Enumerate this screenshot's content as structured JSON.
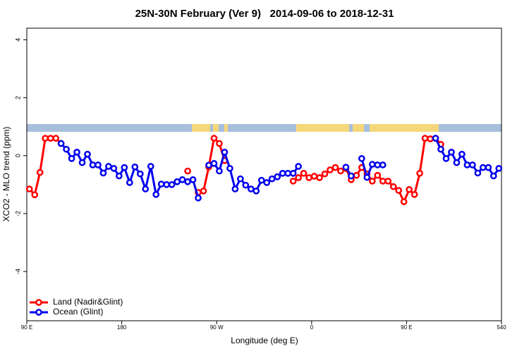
{
  "chart_data": {
    "type": "line",
    "title": "25N-30N February (Ver 9)   2014-09-06 to 2018-12-31",
    "x_label": "Longitude (deg E)",
    "y_label": "XCO2 - MLO trend (ppm)",
    "x": [
      92.5,
      97.5,
      102.5,
      107.5,
      112.5,
      117.5,
      122.5,
      127.5,
      132.5,
      137.5,
      142.5,
      147.5,
      152.5,
      157.5,
      162.5,
      167.5,
      172.5,
      177.5,
      182.5,
      187.5,
      192.5,
      197.5,
      202.5,
      207.5,
      212.5,
      217.5,
      222.5,
      227.5,
      232.5,
      237.5,
      242.5,
      247.5,
      252.5,
      257.5,
      262.5,
      267.5,
      272.5,
      277.5,
      282.5,
      287.5,
      292.5,
      297.5,
      302.5,
      307.5,
      312.5,
      317.5,
      322.5,
      327.5,
      332.5,
      337.5,
      342.5,
      347.5,
      352.5,
      357.5,
      362.5,
      367.5,
      372.5,
      377.5,
      382.5,
      387.5,
      392.5,
      397.5,
      402.5,
      407.5,
      412.5,
      417.5,
      422.5,
      427.5,
      432.5,
      437.5,
      442.5,
      447.5,
      452.5,
      457.5,
      462.5,
      467.5,
      472.5,
      477.5,
      482.5,
      487.5,
      492.5,
      497.5,
      502.5,
      507.5,
      512.5,
      517.5,
      522.5,
      527.5,
      532.5,
      537.5
    ],
    "series": [
      {
        "name": "Land (Nadir&Glint)",
        "color": "#ff0000",
        "values": [
          -1.15,
          -1.35,
          -0.58,
          0.6,
          0.6,
          0.6,
          0.42,
          null,
          null,
          null,
          null,
          null,
          null,
          null,
          null,
          null,
          null,
          null,
          null,
          null,
          null,
          null,
          null,
          null,
          null,
          null,
          null,
          null,
          null,
          null,
          -0.53,
          null,
          -1.27,
          -1.22,
          -0.39,
          0.6,
          0.42,
          -0.17,
          null,
          null,
          null,
          null,
          null,
          null,
          null,
          null,
          null,
          null,
          null,
          null,
          -0.88,
          -0.76,
          -0.61,
          -0.76,
          -0.71,
          -0.76,
          -0.63,
          -0.49,
          -0.41,
          -0.53,
          -0.44,
          -0.83,
          -0.68,
          -0.41,
          -0.63,
          -0.88,
          -0.68,
          -0.88,
          -0.88,
          -1.07,
          -1.2,
          -1.59,
          -1.17,
          -1.34,
          -0.61,
          0.6,
          0.58,
          0.6,
          0.39,
          null,
          null,
          null,
          null,
          null,
          null,
          null,
          null,
          null,
          null,
          null
        ]
      },
      {
        "name": "Ocean (Glint)",
        "color": "#0000ee",
        "values": [
          null,
          null,
          null,
          null,
          null,
          null,
          0.42,
          0.22,
          -0.1,
          0.12,
          -0.24,
          0.05,
          -0.32,
          -0.32,
          -0.6,
          -0.37,
          -0.44,
          -0.7,
          -0.41,
          -0.93,
          -0.39,
          -0.63,
          -1.15,
          -0.37,
          -1.34,
          -0.98,
          -1.0,
          -1.0,
          -0.9,
          -0.83,
          -0.9,
          -0.83,
          -1.46,
          null,
          -0.33,
          -0.27,
          -0.53,
          0.12,
          -0.44,
          -1.15,
          -0.8,
          -1.02,
          -1.15,
          -1.22,
          -0.85,
          -0.93,
          -0.8,
          -0.73,
          -0.61,
          -0.61,
          -0.61,
          -0.37,
          null,
          null,
          null,
          null,
          null,
          null,
          null,
          null,
          -0.4,
          -0.7,
          null,
          -0.1,
          -0.75,
          -0.3,
          -0.32,
          -0.32,
          null,
          null,
          null,
          null,
          null,
          null,
          null,
          null,
          null,
          0.6,
          0.22,
          -0.1,
          0.12,
          -0.24,
          0.05,
          -0.32,
          -0.32,
          -0.6,
          -0.41,
          -0.41,
          -0.7,
          -0.44
        ]
      }
    ],
    "xlim": [
      90,
      540
    ],
    "xticks": [
      {
        "value": 90,
        "label": "90 E"
      },
      180,
      {
        "value": 270,
        "label": "90 W"
      },
      {
        "value": 360,
        "label": "0"
      },
      {
        "value": 450,
        "label": "90 E"
      },
      540
    ],
    "ylim": [
      -5.7,
      4.4
    ],
    "yticks": [
      -4,
      -2,
      0,
      2,
      4
    ],
    "legend": "bottom-left"
  }
}
